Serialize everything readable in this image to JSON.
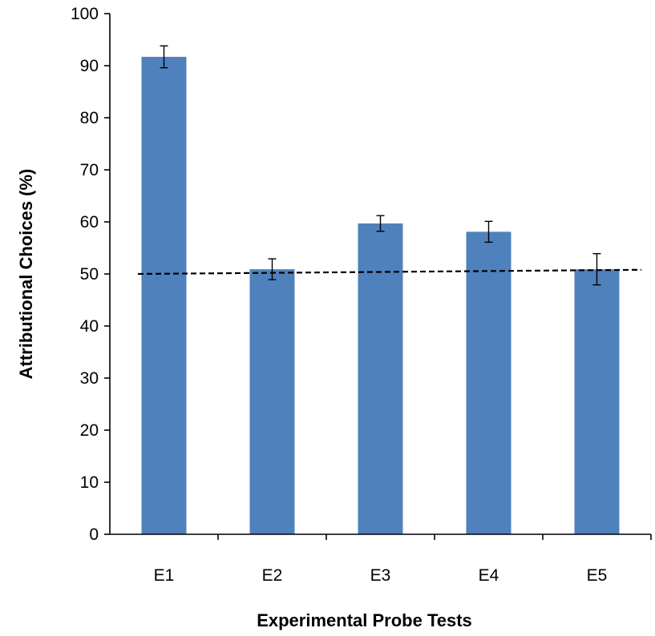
{
  "chart_data": {
    "type": "bar",
    "categories": [
      "E1",
      "E2",
      "E3",
      "E4",
      "E5"
    ],
    "values": [
      91.7,
      50.9,
      59.7,
      58.1,
      50.9
    ],
    "error": [
      2.1,
      2.0,
      1.5,
      2.0,
      3.0
    ],
    "xlabel": "Experimental Probe Tests",
    "ylabel": "Attributional Choices (%)",
    "ylim": [
      0,
      100
    ],
    "yticks": [
      0,
      10,
      20,
      30,
      40,
      50,
      60,
      70,
      80,
      90,
      100
    ],
    "reference_line": {
      "y_start": 50,
      "y_end": 50.8,
      "style": "dashed"
    },
    "grid": false,
    "legend": "none",
    "bar_color": "#4f81bd"
  }
}
